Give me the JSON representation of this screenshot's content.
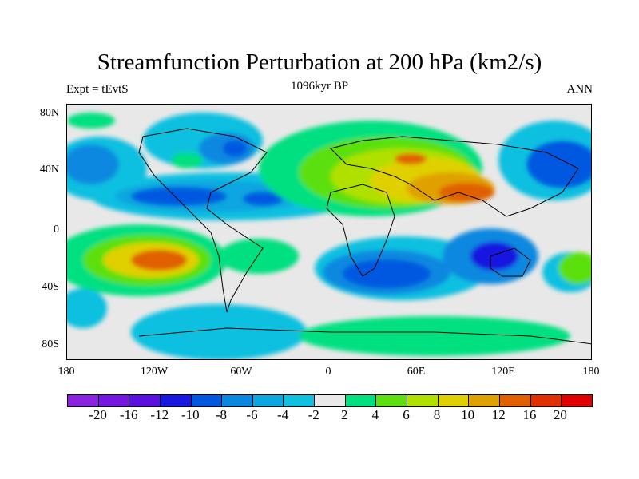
{
  "title": "Streamfunction Perturbation at 200 hPa (km2/s)",
  "left_label": "Expt = tEvtS",
  "center_label": "1096kyr BP",
  "right_label": "ANN",
  "lat_ticks": [
    "80N",
    "40N",
    "0",
    "40S",
    "80S"
  ],
  "lon_ticks": [
    "180",
    "120W",
    "60W",
    "0",
    "60E",
    "120E",
    "180"
  ],
  "colorbar": {
    "labels": [
      "-20",
      "-16",
      "-12",
      "-10",
      "-8",
      "-6",
      "-4",
      "-2",
      "2",
      "4",
      "6",
      "8",
      "10",
      "12",
      "16",
      "20"
    ],
    "colors": [
      "#8a22e0",
      "#7418e0",
      "#5c10e0",
      "#1818e0",
      "#0058e0",
      "#0a88e0",
      "#0ea6e0",
      "#10c0e0",
      "#e8e8e8",
      "#00e080",
      "#5ce010",
      "#b0e000",
      "#e0d000",
      "#e0a000",
      "#e06000",
      "#e03000",
      "#e00000"
    ]
  }
}
